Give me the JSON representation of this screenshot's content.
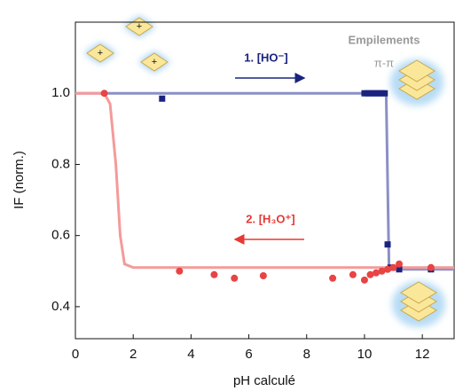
{
  "chart_data": {
    "type": "scatter",
    "x_label": "pH calculé",
    "y_label": "IF (norm.)",
    "xlim": [
      0,
      13.1
    ],
    "ylim": [
      0.31,
      1.2
    ],
    "xticks": [
      0,
      2,
      4,
      6,
      8,
      10,
      12
    ],
    "yticks": [
      0.4,
      0.6,
      0.8,
      {
        "value": 1,
        "label": "1.0"
      }
    ],
    "annotations": [
      {
        "text": "1. [HO⁻]",
        "color": "#1a237e"
      },
      {
        "text": "2. [H₃O⁺]",
        "color": "#e53935"
      },
      {
        "text": "Empilements",
        "color": "#999999"
      },
      {
        "text": "π-π",
        "color": "#999999"
      }
    ],
    "series": [
      {
        "style": "line",
        "color": "#8a90c6",
        "x": [
          0,
          10.75,
          10.85,
          13.1
        ],
        "values": [
          1.0,
          1.0,
          0.505,
          0.505
        ]
      },
      {
        "style": "line",
        "color": "#f59a9a",
        "x": [
          0,
          1.0,
          1.2,
          1.4,
          1.55,
          1.7,
          2.0,
          13.1
        ],
        "values": [
          1.0,
          1.0,
          0.97,
          0.8,
          0.6,
          0.52,
          0.51,
          0.51
        ]
      },
      {
        "style": "square",
        "color": "#1a237e",
        "x": [
          3.0,
          10.0,
          10.1,
          10.2,
          10.3,
          10.4,
          10.5,
          10.6,
          10.7,
          10.8,
          10.9,
          11.2,
          12.3
        ],
        "values": [
          0.985,
          1.0,
          1.0,
          1.0,
          1.0,
          1.0,
          1.0,
          1.0,
          1.0,
          0.575,
          0.51,
          0.505,
          0.505
        ]
      },
      {
        "style": "circle",
        "color": "#e84444",
        "x": [
          1.0,
          3.6,
          4.8,
          5.5,
          6.5,
          8.9,
          9.6,
          10.0,
          10.2,
          10.4,
          10.6,
          10.8,
          11.0,
          11.2,
          12.3
        ],
        "values": [
          1.0,
          0.5,
          0.49,
          0.48,
          0.487,
          0.48,
          0.49,
          0.475,
          0.49,
          0.495,
          0.5,
          0.505,
          0.51,
          0.52,
          0.51
        ]
      }
    ]
  }
}
